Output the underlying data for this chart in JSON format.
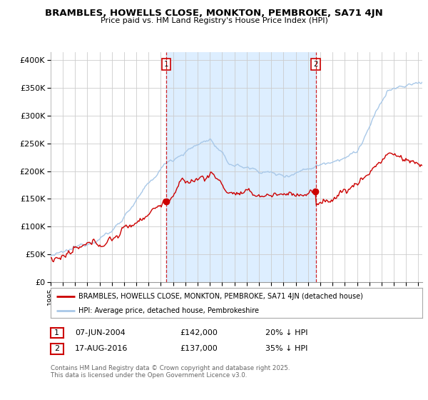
{
  "title": "BRAMBLES, HOWELLS CLOSE, MONKTON, PEMBROKE, SA71 4JN",
  "subtitle": "Price paid vs. HM Land Registry's House Price Index (HPI)",
  "ylabel_ticks": [
    "£0",
    "£50K",
    "£100K",
    "£150K",
    "£200K",
    "£250K",
    "£300K",
    "£350K",
    "£400K"
  ],
  "ytick_values": [
    0,
    50000,
    100000,
    150000,
    200000,
    250000,
    300000,
    350000,
    400000
  ],
  "ylim": [
    0,
    415000
  ],
  "xlim_start": 1995.0,
  "xlim_end": 2025.3,
  "hpi_color": "#a8c8e8",
  "price_color": "#cc0000",
  "shade_color": "#ddeeff",
  "sale1_x": 2004.44,
  "sale1_y": 142000,
  "sale2_x": 2016.63,
  "sale2_y": 137000,
  "sale1_label": "1",
  "sale2_label": "2",
  "legend_line1": "BRAMBLES, HOWELLS CLOSE, MONKTON, PEMBROKE, SA71 4JN (detached house)",
  "legend_line2": "HPI: Average price, detached house, Pembrokeshire",
  "footer": "Contains HM Land Registry data © Crown copyright and database right 2025.\nThis data is licensed under the Open Government Licence v3.0.",
  "background_color": "#ffffff",
  "grid_color": "#cccccc"
}
